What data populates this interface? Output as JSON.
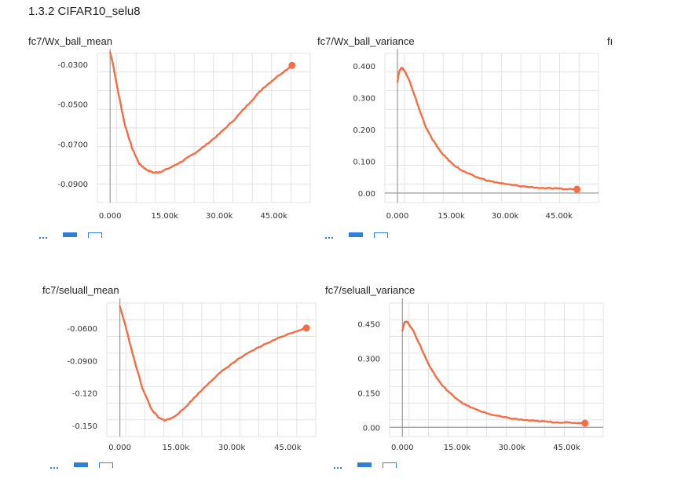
{
  "heading": "1.3.2 CIFAR10_selu8",
  "cut_title": "fı",
  "colors": {
    "line": "#f46d43",
    "grid": "#e3e3e3",
    "axis": "#999999",
    "toolbar": "#2f7ed8"
  },
  "chart_data": [
    {
      "type": "line",
      "title": "fc7/Wx_ball_mean",
      "x_ticks": [
        "0.000",
        "15.00k",
        "30.00k",
        "45.00k"
      ],
      "y_ticks": [
        "-0.0300",
        "-0.0500",
        "-0.0700",
        "-0.0900"
      ],
      "xlim": [
        -3500,
        55000
      ],
      "ylim": [
        -0.0995,
        -0.0245
      ],
      "series": [
        {
          "x": [
            0,
            800,
            2000,
            4000,
            6000,
            8000,
            10000,
            12000,
            14000,
            17000,
            20000,
            23000,
            26000,
            30000,
            34000,
            38000,
            42000,
            46000,
            50000
          ],
          "y": [
            -0.024,
            -0.03,
            -0.042,
            -0.06,
            -0.072,
            -0.08,
            -0.083,
            -0.0845,
            -0.084,
            -0.0815,
            -0.0785,
            -0.075,
            -0.071,
            -0.065,
            -0.058,
            -0.05,
            -0.042,
            -0.036,
            -0.0305
          ]
        }
      ],
      "grid": true
    },
    {
      "type": "line",
      "title": "fc7/Wx_ball_variance",
      "x_ticks": [
        "0.000",
        "15.00k",
        "30.00k",
        "45.00k"
      ],
      "y_ticks": [
        "0.400",
        "0.300",
        "0.200",
        "0.100",
        "0.00"
      ],
      "xlim": [
        -3500,
        56000
      ],
      "ylim": [
        -0.03,
        0.44
      ],
      "series": [
        {
          "x": [
            0,
            500,
            1200,
            2000,
            3500,
            5000,
            6500,
            8000,
            10000,
            12000,
            15000,
            18000,
            22000,
            26000,
            30000,
            35000,
            40000,
            45000,
            50000
          ],
          "y": [
            0.35,
            0.385,
            0.395,
            0.385,
            0.35,
            0.3,
            0.25,
            0.205,
            0.165,
            0.13,
            0.095,
            0.07,
            0.05,
            0.037,
            0.028,
            0.021,
            0.016,
            0.013,
            0.012
          ]
        }
      ],
      "grid": true
    },
    {
      "type": "line",
      "title": "fc7/seluall_mean",
      "x_ticks": [
        "0.000",
        "15.00k",
        "30.00k",
        "45.00k"
      ],
      "y_ticks": [
        "-0.0600",
        "-0.0900",
        "-0.120",
        "-0.150"
      ],
      "xlim": [
        -3500,
        52500
      ],
      "ylim": [
        -0.16,
        -0.037
      ],
      "series": [
        {
          "x": [
            0,
            1500,
            3500,
            6000,
            8500,
            10500,
            12000,
            14000,
            17000,
            20000,
            24000,
            28000,
            32000,
            36000,
            40000,
            44000,
            48000,
            50000
          ],
          "y": [
            -0.04,
            -0.058,
            -0.085,
            -0.115,
            -0.135,
            -0.143,
            -0.145,
            -0.143,
            -0.135,
            -0.124,
            -0.11,
            -0.098,
            -0.088,
            -0.08,
            -0.073,
            -0.067,
            -0.062,
            -0.06
          ]
        }
      ],
      "grid": true
    },
    {
      "type": "line",
      "title": "fc7/seluall_variance",
      "x_ticks": [
        "0.000",
        "15.00k",
        "30.00k",
        "45.00k"
      ],
      "y_ticks": [
        "0.450",
        "0.300",
        "0.150",
        "0.00"
      ],
      "xlim": [
        -3500,
        55000
      ],
      "ylim": [
        -0.04,
        0.54
      ],
      "series": [
        {
          "x": [
            0,
            600,
            1500,
            3000,
            5000,
            7000,
            9000,
            11000,
            14000,
            17000,
            20000,
            24000,
            28000,
            32000,
            36000,
            40000,
            44000,
            48000,
            50000
          ],
          "y": [
            0.42,
            0.46,
            0.455,
            0.42,
            0.35,
            0.28,
            0.225,
            0.18,
            0.135,
            0.1,
            0.078,
            0.057,
            0.043,
            0.034,
            0.028,
            0.024,
            0.021,
            0.019,
            0.018
          ]
        }
      ],
      "grid": true
    }
  ]
}
